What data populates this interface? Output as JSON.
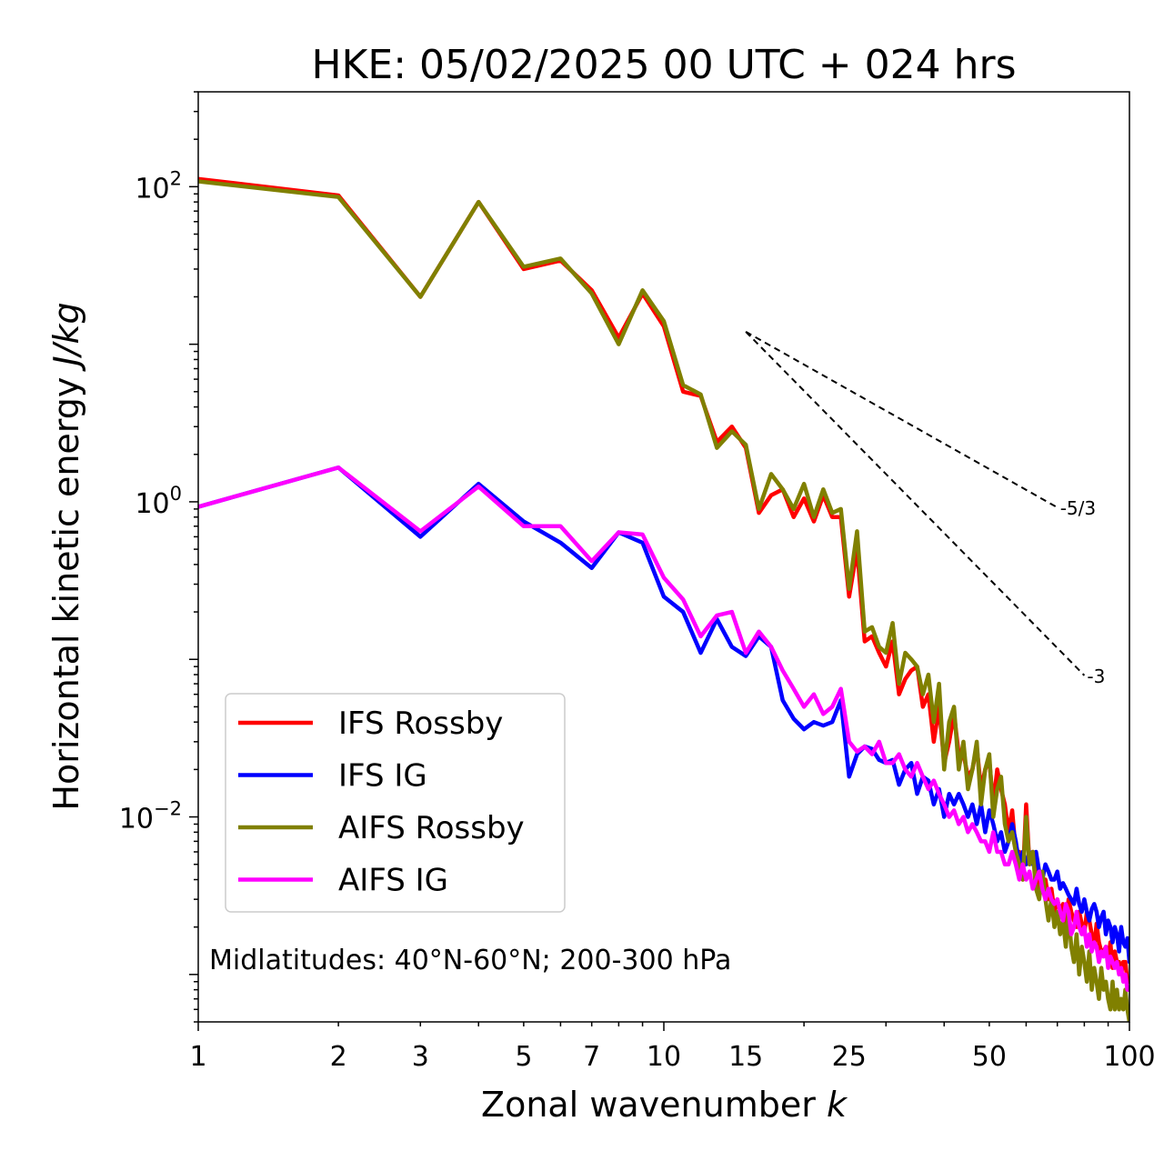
{
  "chart_data": {
    "type": "line",
    "title": "HKE: 05/02/2025 00 UTC + 024 hrs",
    "xlabel": "Zonal wavenumber k",
    "xlabel_main": "Zonal wavenumber ",
    "xlabel_var": "k",
    "ylabel": "Horizontal kinetic energy J/kg",
    "ylabel_main": "Horizontal kinetic energy ",
    "ylabel_unit": "J/kg",
    "xscale": "log",
    "yscale": "log",
    "xlim": [
      1,
      100
    ],
    "ylim": [
      0.0005,
      400
    ],
    "x_ticks": [
      1,
      2,
      3,
      5,
      7,
      10,
      15,
      25,
      50,
      100
    ],
    "x_tick_labels": [
      "1",
      "2",
      "3",
      "5",
      "7",
      "10",
      "15",
      "25",
      "50",
      "100"
    ],
    "y_ticks": [
      {
        "value": 100,
        "base": "10",
        "exp": "2"
      },
      {
        "value": 1,
        "base": "10",
        "exp": "0"
      },
      {
        "value": 0.01,
        "base": "10",
        "exp": "−2"
      }
    ],
    "grid": false,
    "legend_position": "lower-left",
    "annotation": "Midlatitudes: 40°N-60°N; 200-300 hPa",
    "reference_lines": [
      {
        "label": "-5/3",
        "slope": -1.6667,
        "x_start": 15,
        "y_start": 12,
        "x_end": 70
      },
      {
        "label": "-3",
        "slope": -3,
        "x_start": 15,
        "y_start": 12,
        "x_end": 80
      }
    ],
    "series": [
      {
        "name": "IFS Rossby",
        "color": "#ff0000",
        "values": [
          112,
          88,
          20,
          80,
          30,
          34,
          22,
          11,
          21,
          13,
          5.0,
          4.7,
          2.4,
          3.0,
          2.2,
          0.85,
          1.1,
          1.2,
          0.8,
          1.05,
          0.75,
          1.1,
          0.8,
          0.8,
          0.25,
          0.5,
          0.13,
          0.14,
          0.11,
          0.09,
          0.13,
          0.06,
          0.075,
          0.085,
          0.09,
          0.05,
          0.06,
          0.03,
          0.05,
          0.022,
          0.03,
          0.045,
          0.025,
          0.025,
          0.018,
          0.02,
          0.028,
          0.015,
          0.02,
          0.023,
          0.012,
          0.02,
          0.015,
          0.012,
          0.008,
          0.011,
          0.006,
          0.006,
          0.004,
          0.012,
          0.005,
          0.006,
          0.0045,
          0.0035,
          0.004,
          0.004,
          0.003,
          0.0035,
          0.0025,
          0.003,
          0.0025,
          0.0028,
          0.002,
          0.003,
          0.0025,
          0.0022,
          0.002,
          0.0025,
          0.0021,
          0.0018,
          0.0025,
          0.0022,
          0.0018,
          0.0015,
          0.0021,
          0.0016,
          0.0014,
          0.0014,
          0.0015,
          0.0012,
          0.0016,
          0.0011,
          0.0014,
          0.0012,
          0.0012,
          0.001,
          0.0012,
          0.0012,
          0.0009,
          0.0009
        ]
      },
      {
        "name": "IFS IG",
        "color": "#0000ff",
        "values": [
          0.93,
          1.65,
          0.6,
          1.3,
          0.75,
          0.55,
          0.38,
          0.64,
          0.55,
          0.25,
          0.2,
          0.11,
          0.18,
          0.12,
          0.105,
          0.14,
          0.12,
          0.055,
          0.042,
          0.036,
          0.04,
          0.038,
          0.04,
          0.055,
          0.018,
          0.025,
          0.028,
          0.027,
          0.023,
          0.022,
          0.023,
          0.016,
          0.02,
          0.022,
          0.014,
          0.018,
          0.017,
          0.012,
          0.015,
          0.01,
          0.014,
          0.012,
          0.014,
          0.012,
          0.01,
          0.012,
          0.009,
          0.012,
          0.008,
          0.011,
          0.009,
          0.007,
          0.008,
          0.006,
          0.007,
          0.009,
          0.007,
          0.005,
          0.006,
          0.005,
          0.006,
          0.005,
          0.006,
          0.0045,
          0.004,
          0.005,
          0.0045,
          0.004,
          0.004,
          0.0045,
          0.0035,
          0.0038,
          0.0035,
          0.0032,
          0.003,
          0.0028,
          0.0035,
          0.0028,
          0.0025,
          0.003,
          0.0025,
          0.0022,
          0.0026,
          0.0028,
          0.0025,
          0.002,
          0.0023,
          0.0025,
          0.0018,
          0.0022,
          0.002,
          0.0016,
          0.002,
          0.0018,
          0.0014,
          0.002,
          0.0016,
          0.0015,
          0.0017,
          0.0012
        ]
      },
      {
        "name": "AIFS Rossby",
        "color": "#808000",
        "values": [
          108,
          86,
          20,
          80,
          31,
          35,
          21,
          10,
          22,
          14,
          5.5,
          4.8,
          2.2,
          2.8,
          2.3,
          0.9,
          1.5,
          1.2,
          0.9,
          1.3,
          0.8,
          1.2,
          0.85,
          0.9,
          0.28,
          0.65,
          0.15,
          0.16,
          0.12,
          0.11,
          0.17,
          0.07,
          0.11,
          0.1,
          0.09,
          0.06,
          0.08,
          0.04,
          0.07,
          0.02,
          0.04,
          0.05,
          0.02,
          0.03,
          0.015,
          0.02,
          0.03,
          0.012,
          0.02,
          0.025,
          0.01,
          0.015,
          0.018,
          0.009,
          0.007,
          0.008,
          0.006,
          0.005,
          0.004,
          0.01,
          0.005,
          0.006,
          0.0035,
          0.003,
          0.0045,
          0.003,
          0.0022,
          0.003,
          0.002,
          0.0025,
          0.0018,
          0.0022,
          0.0015,
          0.0025,
          0.0015,
          0.0012,
          0.0018,
          0.001,
          0.0015,
          0.0012,
          0.0009,
          0.0014,
          0.0008,
          0.0011,
          0.0009,
          0.0007,
          0.0011,
          0.0008,
          0.0009,
          0.0007,
          0.0006,
          0.0009,
          0.0006,
          0.0008,
          0.0006,
          0.0007,
          0.0006,
          0.0008,
          0.0006,
          0.0005
        ]
      },
      {
        "name": "AIFS IG",
        "color": "#ff00ff",
        "values": [
          0.93,
          1.65,
          0.65,
          1.25,
          0.7,
          0.7,
          0.42,
          0.64,
          0.62,
          0.33,
          0.24,
          0.14,
          0.19,
          0.2,
          0.11,
          0.15,
          0.12,
          0.085,
          0.065,
          0.05,
          0.06,
          0.045,
          0.05,
          0.065,
          0.03,
          0.026,
          0.028,
          0.025,
          0.03,
          0.022,
          0.022,
          0.025,
          0.02,
          0.018,
          0.022,
          0.018,
          0.015,
          0.017,
          0.014,
          0.012,
          0.01,
          0.011,
          0.009,
          0.01,
          0.008,
          0.009,
          0.008,
          0.007,
          0.007,
          0.006,
          0.008,
          0.006,
          0.006,
          0.005,
          0.005,
          0.006,
          0.005,
          0.004,
          0.005,
          0.004,
          0.0045,
          0.0035,
          0.004,
          0.0045,
          0.0035,
          0.003,
          0.0035,
          0.003,
          0.0028,
          0.003,
          0.0025,
          0.0022,
          0.0028,
          0.0025,
          0.0018,
          0.002,
          0.0025,
          0.002,
          0.0018,
          0.002,
          0.0015,
          0.0018,
          0.0014,
          0.0016,
          0.0015,
          0.0012,
          0.0014,
          0.0013,
          0.0015,
          0.0011,
          0.0013,
          0.0012,
          0.0011,
          0.0012,
          0.001,
          0.0011,
          0.0009,
          0.001,
          0.0008,
          0.0008
        ]
      }
    ]
  }
}
